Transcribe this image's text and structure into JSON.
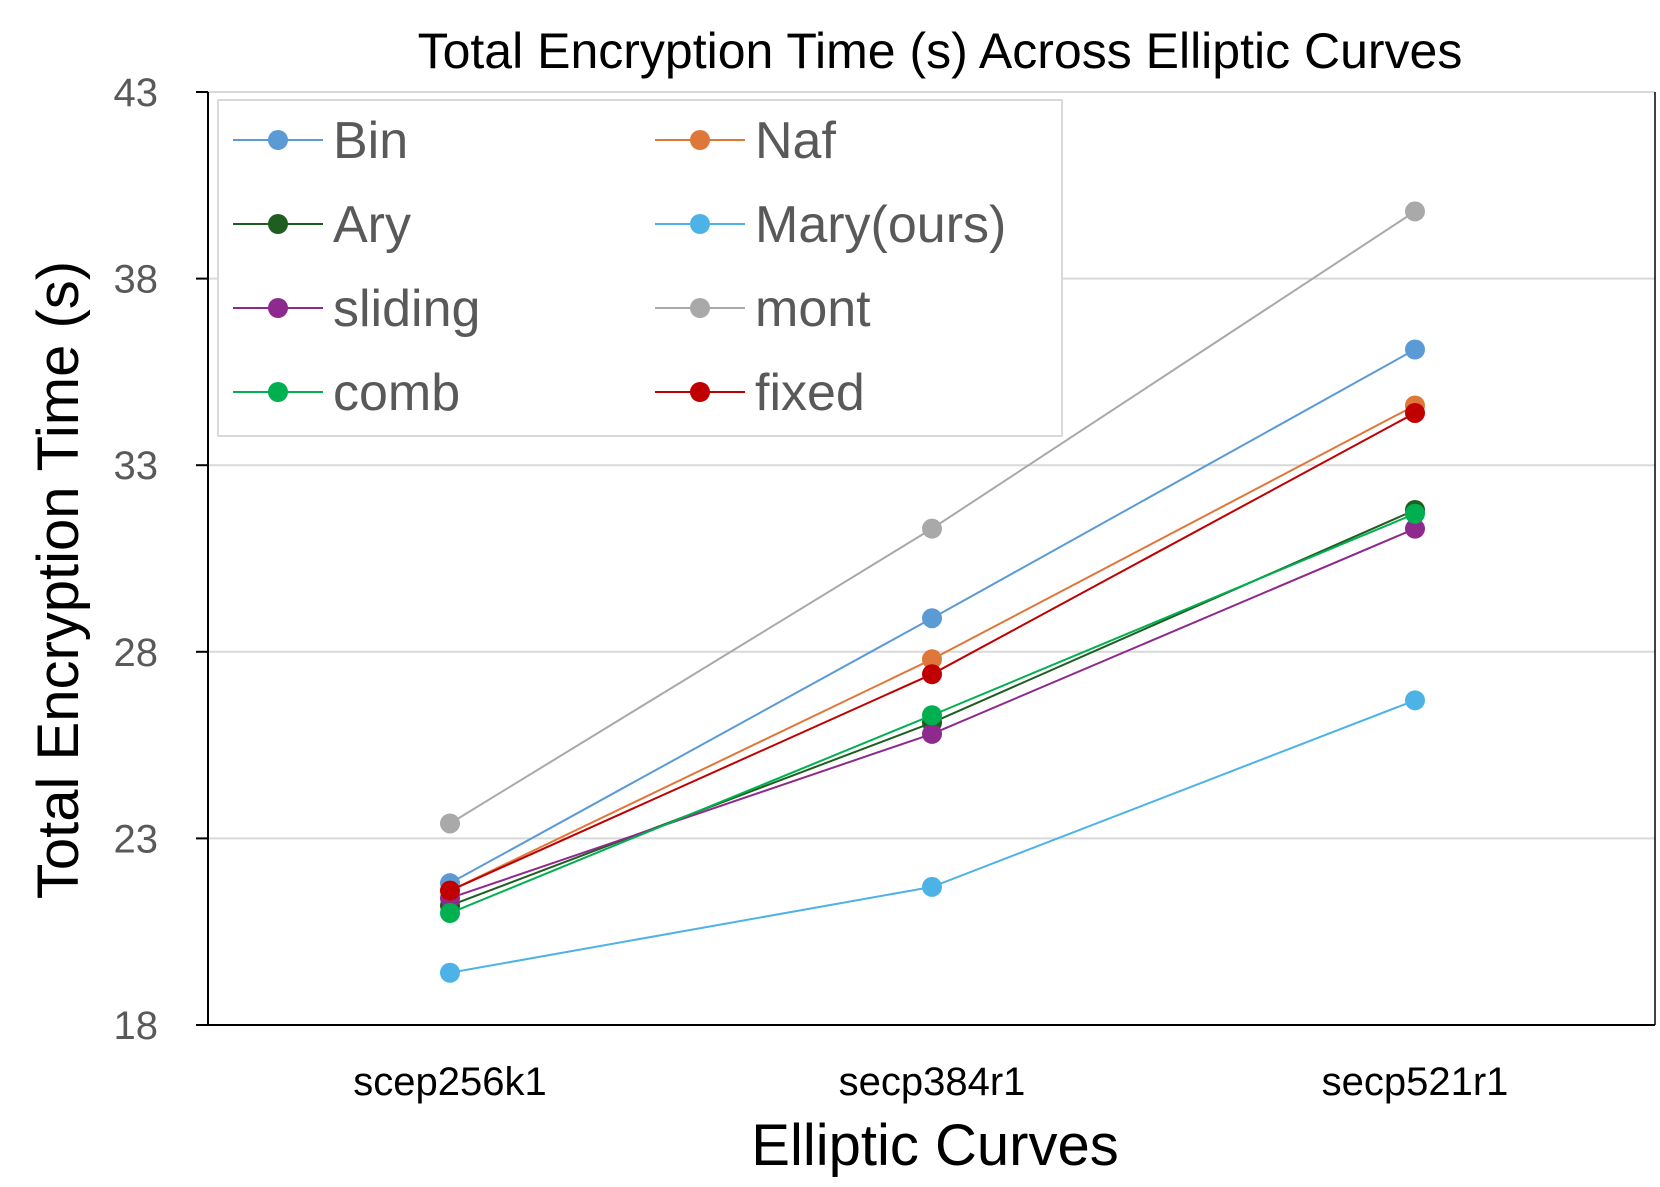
{
  "chart_data": {
    "type": "line",
    "title": "Total Encryption Time (s) Across Elliptic Curves",
    "xlabel": "Elliptic Curves",
    "ylabel": "Total Encryption Time (s)",
    "categories": [
      "scep256k1",
      "secp384r1",
      "secp521r1"
    ],
    "ylim": [
      18,
      43
    ],
    "yticks": [
      "18",
      "23",
      "28",
      "33",
      "38",
      "43"
    ],
    "grid": "horizontal",
    "legend_position": "top-left",
    "series": [
      {
        "name": "Bin",
        "color": "#5b9bd5",
        "values": [
          21.8,
          28.9,
          36.1
        ]
      },
      {
        "name": "Naf",
        "color": "#e0773a",
        "values": [
          21.6,
          27.8,
          34.6
        ]
      },
      {
        "name": "Ary",
        "color": "#1e5e20",
        "values": [
          21.2,
          26.1,
          31.8
        ]
      },
      {
        "name": "Mary(ours)",
        "color": "#4db3e6",
        "values": [
          19.4,
          21.7,
          26.7
        ]
      },
      {
        "name": "sliding",
        "color": "#8e2a8e",
        "values": [
          21.4,
          25.8,
          31.3
        ]
      },
      {
        "name": "mont",
        "color": "#a9a9a9",
        "values": [
          23.4,
          31.3,
          39.8
        ]
      },
      {
        "name": "comb",
        "color": "#00b050",
        "values": [
          21.0,
          26.3,
          31.7
        ]
      },
      {
        "name": "fixed",
        "color": "#c00000",
        "values": [
          21.6,
          27.4,
          34.4
        ]
      }
    ]
  }
}
